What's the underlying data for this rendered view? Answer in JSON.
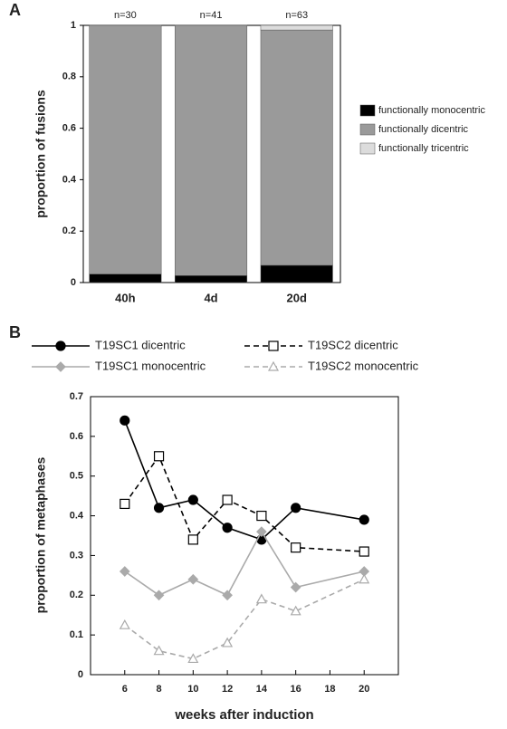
{
  "chart_data": [
    {
      "type": "stacked_bar",
      "panel_label": "A",
      "y_label": "proportion of fusions",
      "categories": [
        "40h",
        "4d",
        "20d"
      ],
      "annotations": [
        "n=30",
        "n=41",
        "n=63"
      ],
      "series": [
        {
          "name": "functionally monocentric",
          "color": "#000000",
          "values": [
            0.033,
            0.027,
            0.067
          ]
        },
        {
          "name": "functionally dicentric",
          "color": "#9a9a9a",
          "values": [
            0.967,
            0.973,
            0.915
          ]
        },
        {
          "name": "functionally tricentric",
          "color": "#dcdcdc",
          "values": [
            0,
            0,
            0.018
          ]
        }
      ],
      "ylim": [
        0,
        1
      ],
      "yticks": [
        0,
        0.2,
        0.4,
        0.6,
        0.8,
        1
      ],
      "legend": "right"
    },
    {
      "type": "line",
      "panel_label": "B",
      "x_label": "weeks after induction",
      "y_label": "proportion of metaphases",
      "x": [
        6,
        8,
        10,
        12,
        14,
        16,
        20
      ],
      "series": [
        {
          "name": "T19SC1 dicentric",
          "color": "#000000",
          "marker": "circle",
          "filled": true,
          "dashed": false,
          "values": [
            0.64,
            0.42,
            0.44,
            0.37,
            0.34,
            0.42,
            0.39
          ]
        },
        {
          "name": "T19SC2 dicentric",
          "color": "#000000",
          "marker": "square",
          "filled": false,
          "dashed": true,
          "values": [
            0.43,
            0.55,
            0.34,
            0.44,
            0.4,
            0.32,
            0.31
          ]
        },
        {
          "name": "T19SC1 monocentric",
          "color": "#aaaaaa",
          "marker": "diamond",
          "filled": true,
          "dashed": false,
          "values": [
            0.26,
            0.2,
            0.24,
            0.2,
            0.36,
            0.22,
            0.26
          ]
        },
        {
          "name": "T19SC2 monocentric",
          "color": "#aaaaaa",
          "marker": "triangle",
          "filled": false,
          "dashed": true,
          "values": [
            0.125,
            0.06,
            0.04,
            0.08,
            0.19,
            0.16,
            0.24
          ]
        }
      ],
      "xlim": [
        4,
        22
      ],
      "xticks": [
        6,
        8,
        10,
        12,
        14,
        16,
        18,
        20
      ],
      "ylim": [
        0,
        0.7
      ],
      "yticks": [
        0,
        0.1,
        0.2,
        0.3,
        0.4,
        0.5,
        0.6,
        0.7
      ],
      "legend": "top"
    }
  ]
}
